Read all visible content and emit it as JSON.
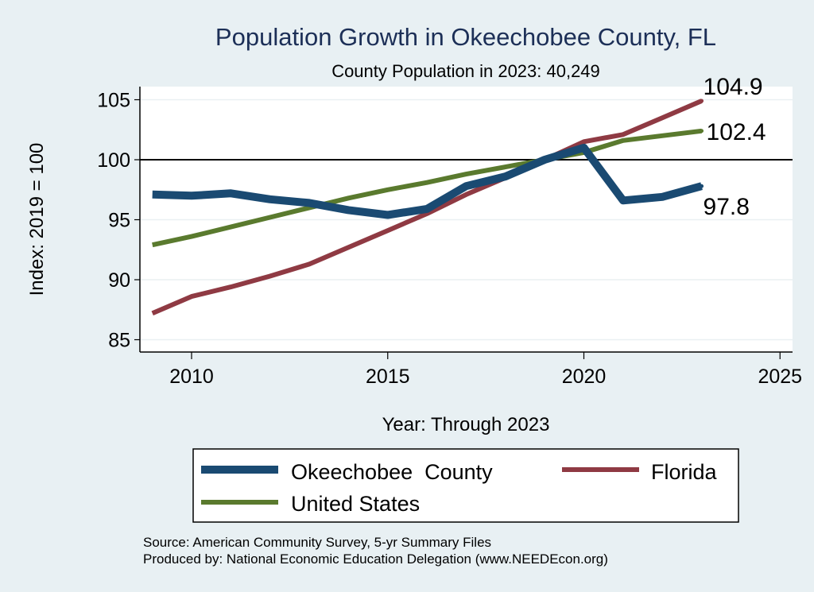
{
  "chart_data": {
    "type": "line",
    "title": "Population Growth in Okeechobee County, FL",
    "subtitle": "County Population in 2023: 40,249",
    "xlabel": "Year: Through 2023",
    "ylabel": "Index: 2019 = 100",
    "xlim": [
      2009,
      2025
    ],
    "ylim": [
      85,
      106
    ],
    "x_ticks": [
      2010,
      2015,
      2020,
      2025
    ],
    "y_ticks": [
      85,
      90,
      95,
      100,
      105
    ],
    "reference_line": 100,
    "grid": true,
    "legend_position": "bottom",
    "x": [
      2009,
      2010,
      2011,
      2012,
      2013,
      2014,
      2015,
      2016,
      2017,
      2018,
      2019,
      2020,
      2021,
      2022,
      2023
    ],
    "series": [
      {
        "name": "Okeechobee  County",
        "color": "#1a4a72",
        "values": [
          97.1,
          97.0,
          97.2,
          96.7,
          96.4,
          95.8,
          95.4,
          95.9,
          97.8,
          98.6,
          100.0,
          101.0,
          96.6,
          96.9,
          97.8
        ],
        "end_label": "97.8"
      },
      {
        "name": "Florida",
        "color": "#8f3a43",
        "values": [
          87.2,
          88.6,
          89.4,
          90.3,
          91.3,
          92.7,
          94.1,
          95.5,
          97.1,
          98.5,
          100.0,
          101.5,
          102.1,
          103.5,
          104.9
        ],
        "end_label": "104.9"
      },
      {
        "name": "United States",
        "color": "#5a7a2e",
        "values": [
          92.9,
          93.6,
          94.4,
          95.2,
          96.0,
          96.8,
          97.5,
          98.1,
          98.8,
          99.4,
          100.0,
          100.6,
          101.6,
          102.0,
          102.4
        ],
        "end_label": "102.4"
      }
    ],
    "notes": [
      "Source: American Community Survey, 5-yr Summary Files",
      "Produced by: National Economic Education Delegation (www.NEEDEcon.org)"
    ]
  }
}
